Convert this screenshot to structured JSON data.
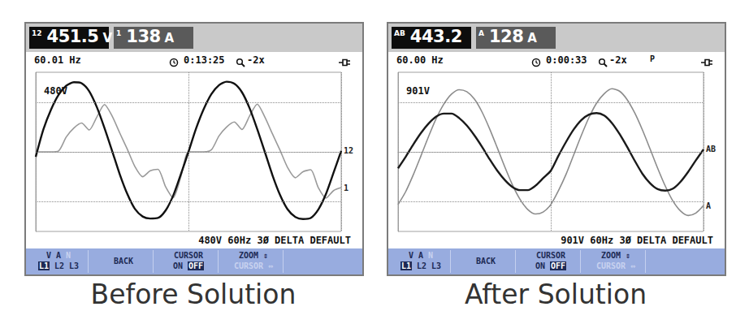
{
  "chart_data": [
    {
      "type": "line",
      "title": "Before Solution",
      "annotations": {
        "readouts": [
          {
            "tag": "12",
            "value": "451.5",
            "unit": "V"
          },
          {
            "tag": "1",
            "value": "138",
            "unit": "A"
          }
        ],
        "frequency": "60.01 Hz",
        "timer": "0:13:25",
        "zoom": "-2x",
        "scale_label": "480V",
        "footer": "480V 60Hz 3Ø DELTA DEFAULT",
        "buttons": [
          [
            "V A N",
            "L1 L2 L3"
          ],
          [
            "BACK"
          ],
          [
            "CURSOR",
            "ON OFF"
          ],
          [
            "ZOOM ⇕",
            "CURSOR ⇔"
          ]
        ]
      },
      "x": [
        0,
        0.05,
        0.1,
        0.15,
        0.2,
        0.25,
        0.3,
        0.35,
        0.4,
        0.45,
        0.5,
        0.55,
        0.6,
        0.65,
        0.7,
        0.75,
        0.8,
        0.85,
        0.9,
        0.95,
        1,
        1.05,
        1.1,
        1.15,
        1.2,
        1.25,
        1.3,
        1.35,
        1.4,
        1.45,
        1.5,
        1.55,
        1.6,
        1.65,
        1.7,
        1.75,
        1.8,
        1.85,
        1.9,
        1.95,
        2
      ],
      "xlim": [
        0,
        2
      ],
      "xticks": [
        0,
        1,
        2
      ],
      "ylim": [
        -1.6,
        1.6
      ],
      "yticks": [
        -1,
        0,
        1
      ],
      "grid": true,
      "tick_labels": false,
      "series": [
        {
          "name": "12",
          "color": "#111111",
          "values": [
            -0.1,
            0.45,
            0.85,
            1.15,
            1.33,
            1.4,
            1.38,
            1.22,
            0.9,
            0.48,
            0.02,
            -0.45,
            -0.85,
            -1.15,
            -1.3,
            -1.34,
            -1.33,
            -1.18,
            -0.88,
            -0.45,
            0,
            0.47,
            0.86,
            1.16,
            1.34,
            1.41,
            1.37,
            1.2,
            0.88,
            0.46,
            0,
            -0.47,
            -0.87,
            -1.16,
            -1.31,
            -1.35,
            -1.33,
            -1.16,
            -0.85,
            -0.42,
            0.02
          ]
        },
        {
          "name": "1",
          "color": "#9a9a9a",
          "values": [
            0,
            0,
            0,
            0.02,
            0.3,
            0.48,
            0.58,
            0.44,
            0.7,
            0.95,
            0.72,
            0.38,
            0.05,
            -0.3,
            -0.5,
            -0.38,
            -0.35,
            -0.7,
            -0.92,
            -0.5,
            0,
            0,
            0,
            0.04,
            0.32,
            0.5,
            0.6,
            0.45,
            0.72,
            0.96,
            0.7,
            0.36,
            0.03,
            -0.32,
            -0.52,
            -0.4,
            -0.36,
            -0.72,
            -0.93,
            -0.78,
            -0.72
          ]
        }
      ]
    },
    {
      "type": "line",
      "title": "After Solution",
      "annotations": {
        "readouts": [
          {
            "tag": "AB",
            "value": "443.2",
            "unit": ""
          },
          {
            "tag": "A",
            "value": "128",
            "unit": "A"
          }
        ],
        "frequency": "60.00 Hz",
        "timer": "0:00:33",
        "zoom": "-2x",
        "flag": "P",
        "scale_label": "901V",
        "footer": "901V 60Hz 3Ø DELTA DEFAULT",
        "buttons": [
          [
            "V A N",
            "L1 L2 L3"
          ],
          [
            "BACK"
          ],
          [
            "CURSOR",
            "ON OFF"
          ],
          [
            "ZOOM ⇕",
            "CURSOR ⇔"
          ]
        ]
      },
      "x": [
        0,
        0.05,
        0.1,
        0.15,
        0.2,
        0.25,
        0.3,
        0.35,
        0.4,
        0.45,
        0.5,
        0.55,
        0.6,
        0.65,
        0.7,
        0.75,
        0.8,
        0.85,
        0.9,
        0.95,
        1,
        1.05,
        1.1,
        1.15,
        1.2,
        1.25,
        1.3,
        1.35,
        1.4,
        1.45,
        1.5,
        1.55,
        1.6,
        1.65,
        1.7,
        1.75,
        1.8,
        1.85,
        1.9,
        1.95,
        2
      ],
      "xlim": [
        0,
        2
      ],
      "xticks": [
        0,
        1,
        2
      ],
      "ylim": [
        -1.6,
        1.6
      ],
      "yticks": [
        -1,
        0,
        1
      ],
      "grid": true,
      "tick_labels": false,
      "series": [
        {
          "name": "AB",
          "color": "#1a1a1a",
          "values": [
            -0.33,
            -0.1,
            0.15,
            0.38,
            0.57,
            0.71,
            0.77,
            0.77,
            0.68,
            0.53,
            0.33,
            0.1,
            -0.15,
            -0.38,
            -0.57,
            -0.71,
            -0.77,
            -0.77,
            -0.68,
            -0.53,
            -0.38,
            -0.08,
            0.2,
            0.45,
            0.64,
            0.75,
            0.78,
            0.73,
            0.58,
            0.36,
            0.1,
            -0.18,
            -0.44,
            -0.63,
            -0.75,
            -0.78,
            -0.74,
            -0.6,
            -0.4,
            -0.17,
            0.05
          ]
        },
        {
          "name": "A",
          "color": "#8c8c8c",
          "values": [
            -1.06,
            -0.8,
            -0.46,
            -0.08,
            0.31,
            0.67,
            0.96,
            1.16,
            1.25,
            1.21,
            1.06,
            0.8,
            0.46,
            0.08,
            -0.31,
            -0.67,
            -0.96,
            -1.16,
            -1.25,
            -1.21,
            -1.06,
            -0.78,
            -0.45,
            -0.06,
            0.33,
            0.69,
            0.98,
            1.17,
            1.27,
            1.22,
            1.05,
            0.78,
            0.44,
            0.06,
            -0.33,
            -0.69,
            -0.99,
            -1.19,
            -1.28,
            -1.23,
            -1.08
          ]
        }
      ]
    }
  ]
}
